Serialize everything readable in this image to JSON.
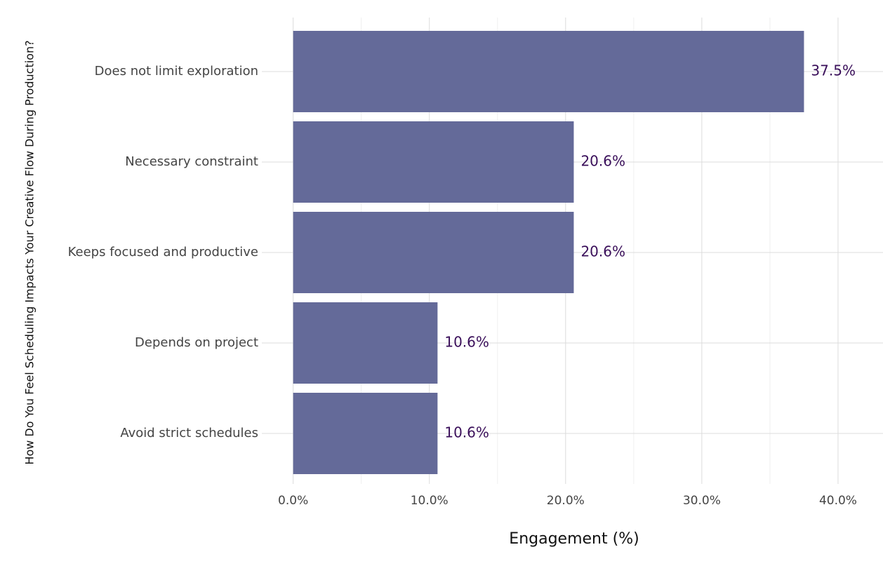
{
  "chart_data": {
    "type": "barh",
    "x_label": "Engagement (%)",
    "y_label": "How Do You Feel Scheduling Impacts Your Creative Flow During Production?",
    "categories": [
      "Does not limit exploration",
      "Necessary constraint",
      "Keeps focused and productive",
      "Depends on project",
      "Avoid strict schedules"
    ],
    "values": [
      37.5,
      20.6,
      20.6,
      10.6,
      10.6
    ],
    "value_labels": [
      "37.5%",
      "20.6%",
      "20.6%",
      "10.6%",
      "10.6%"
    ],
    "color": "#646a99",
    "xlim": [
      -2.3,
      43.3
    ],
    "xticks": [
      {
        "value": 0,
        "label": "0.0%"
      },
      {
        "value": 10,
        "label": "10.0%"
      },
      {
        "value": 20,
        "label": "20.0%"
      },
      {
        "value": 30,
        "label": "30.0%"
      },
      {
        "value": 40,
        "label": "40.0%"
      }
    ],
    "xminor": [
      5,
      15,
      25,
      35
    ],
    "grid": true
  }
}
